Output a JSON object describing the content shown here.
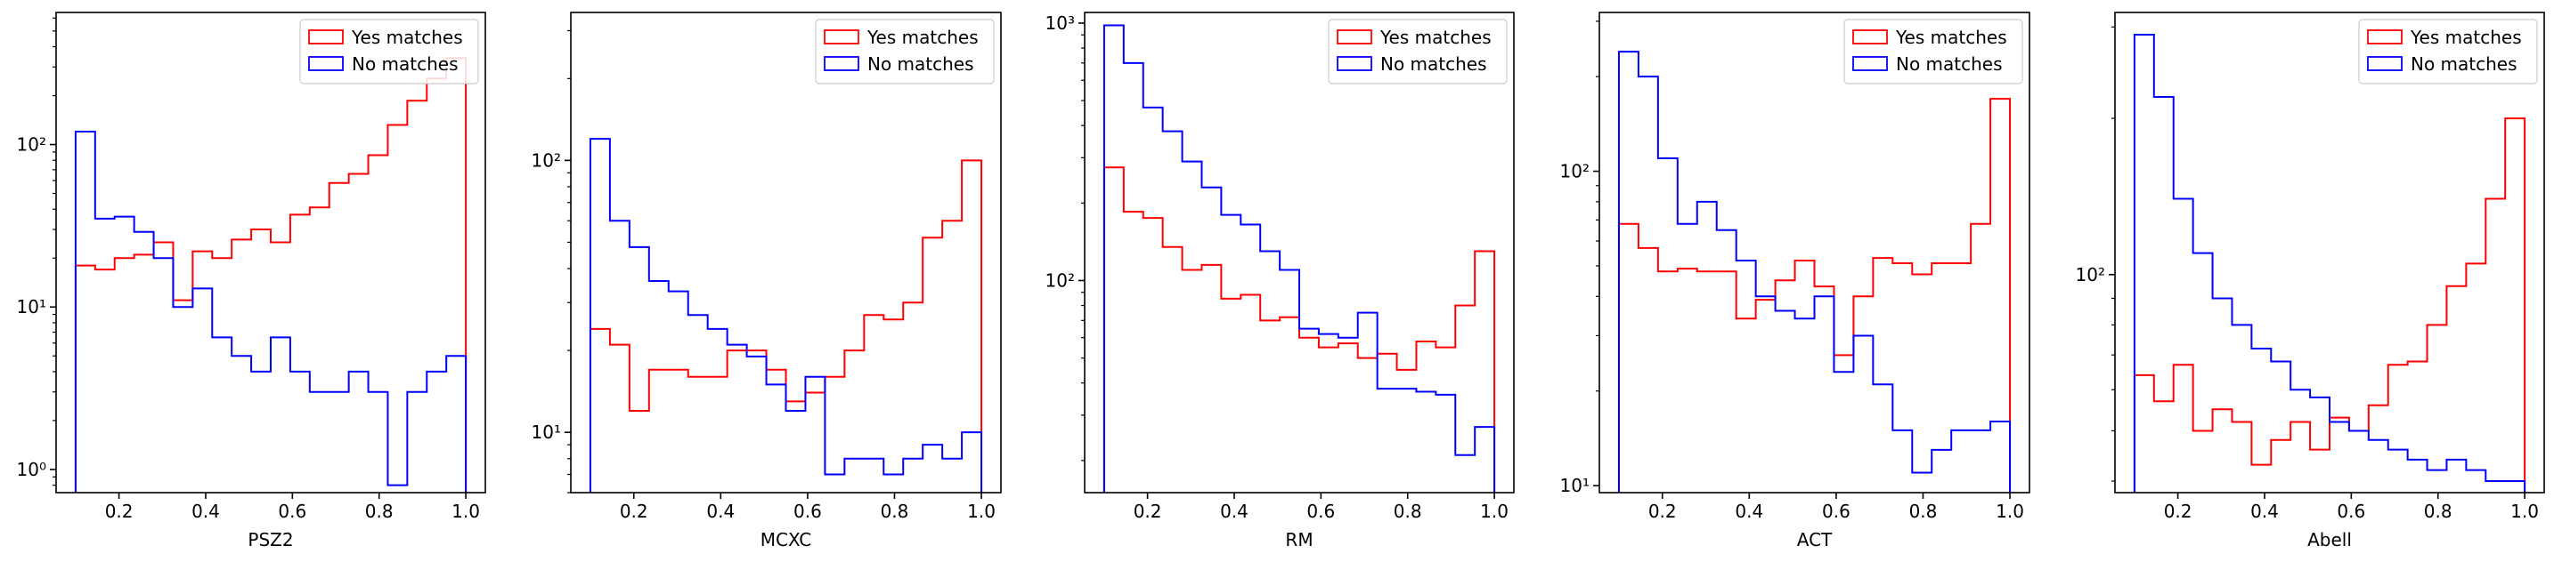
{
  "colors": {
    "yes": "#ff0000",
    "no": "#0000ff",
    "axis": "#000000",
    "legend_frame": "#cccccc"
  },
  "chart_data": [
    {
      "type": "histogram",
      "xlabel": "PSZ2",
      "ylabel": "",
      "xlim": [
        0.055,
        1.045
      ],
      "ylim": [
        0.72,
        650
      ],
      "yscale": "log",
      "legend_placement": "top-right",
      "xticks": [
        {
          "v": 0.2,
          "label": "0.2"
        },
        {
          "v": 0.4,
          "label": "0.4"
        },
        {
          "v": 0.6,
          "label": "0.6"
        },
        {
          "v": 0.8,
          "label": "0.8"
        },
        {
          "v": 1.0,
          "label": "1.0"
        }
      ],
      "yticks": [
        {
          "v": 1,
          "label": "10⁰"
        },
        {
          "v": 10,
          "label": "10¹"
        },
        {
          "v": 100,
          "label": "10²"
        }
      ],
      "bin_edges": [
        0.1,
        0.145,
        0.19,
        0.235,
        0.28,
        0.325,
        0.37,
        0.415,
        0.46,
        0.505,
        0.55,
        0.595,
        0.64,
        0.685,
        0.73,
        0.775,
        0.82,
        0.865,
        0.91,
        0.955,
        1.0
      ],
      "series": [
        {
          "name": "Yes matches",
          "color": "#ff0000",
          "counts": [
            18,
            17,
            20,
            21,
            25,
            11,
            22,
            20,
            26,
            30,
            25,
            37,
            41,
            58,
            66,
            86,
            132,
            186,
            255,
            340
          ]
        },
        {
          "name": "No matches",
          "color": "#0000ff",
          "counts": [
            120,
            35,
            36,
            29,
            20,
            10,
            13,
            6.5,
            5,
            4,
            6.5,
            4,
            3,
            3,
            4,
            3,
            0.8,
            3,
            4,
            5
          ]
        }
      ]
    },
    {
      "type": "histogram",
      "xlabel": "MCXC",
      "ylabel": "",
      "xlim": [
        0.055,
        1.045
      ],
      "ylim": [
        6,
        350
      ],
      "yscale": "log",
      "legend_placement": "top-right",
      "xticks": [
        {
          "v": 0.2,
          "label": "0.2"
        },
        {
          "v": 0.4,
          "label": "0.4"
        },
        {
          "v": 0.6,
          "label": "0.6"
        },
        {
          "v": 0.8,
          "label": "0.8"
        },
        {
          "v": 1.0,
          "label": "1.0"
        }
      ],
      "yticks": [
        {
          "v": 10,
          "label": "10¹"
        },
        {
          "v": 100,
          "label": "10²"
        }
      ],
      "bin_edges": [
        0.1,
        0.145,
        0.19,
        0.235,
        0.28,
        0.325,
        0.37,
        0.415,
        0.46,
        0.505,
        0.55,
        0.595,
        0.64,
        0.685,
        0.73,
        0.775,
        0.82,
        0.865,
        0.91,
        0.955,
        1.0
      ],
      "series": [
        {
          "name": "Yes matches",
          "color": "#ff0000",
          "counts": [
            24,
            21,
            12,
            17,
            17,
            16,
            16,
            20,
            20,
            17,
            13,
            14,
            16,
            20,
            27,
            26,
            30,
            52,
            60,
            100
          ]
        },
        {
          "name": "No matches",
          "color": "#0000ff",
          "counts": [
            120,
            60,
            48,
            36,
            33,
            27,
            24,
            21,
            19,
            15,
            12,
            16,
            7,
            8,
            8,
            7,
            8,
            9,
            8,
            10
          ]
        }
      ]
    },
    {
      "type": "histogram",
      "xlabel": "RM",
      "ylabel": "",
      "xlim": [
        0.055,
        1.045
      ],
      "ylim": [
        15,
        1100
      ],
      "yscale": "log",
      "legend_placement": "top-right",
      "xticks": [
        {
          "v": 0.2,
          "label": "0.2"
        },
        {
          "v": 0.4,
          "label": "0.4"
        },
        {
          "v": 0.6,
          "label": "0.6"
        },
        {
          "v": 0.8,
          "label": "0.8"
        },
        {
          "v": 1.0,
          "label": "1.0"
        }
      ],
      "yticks": [
        {
          "v": 100,
          "label": "10²"
        },
        {
          "v": 1000,
          "label": "10³"
        }
      ],
      "bin_edges": [
        0.1,
        0.145,
        0.19,
        0.235,
        0.28,
        0.325,
        0.37,
        0.415,
        0.46,
        0.505,
        0.55,
        0.595,
        0.64,
        0.685,
        0.73,
        0.775,
        0.82,
        0.865,
        0.91,
        0.955,
        1.0
      ],
      "series": [
        {
          "name": "Yes matches",
          "color": "#ff0000",
          "counts": [
            275,
            185,
            175,
            135,
            110,
            115,
            85,
            88,
            70,
            72,
            60,
            55,
            57,
            50,
            52,
            45,
            58,
            55,
            80,
            130
          ]
        },
        {
          "name": "No matches",
          "color": "#0000ff",
          "counts": [
            980,
            700,
            470,
            380,
            290,
            230,
            180,
            165,
            130,
            110,
            65,
            62,
            60,
            75,
            38,
            38,
            37,
            36,
            21,
            27
          ]
        }
      ]
    },
    {
      "type": "histogram",
      "xlabel": "ACT",
      "ylabel": "",
      "xlim": [
        0.055,
        1.045
      ],
      "ylim": [
        9.5,
        320
      ],
      "yscale": "log",
      "legend_placement": "top-right",
      "xticks": [
        {
          "v": 0.2,
          "label": "0.2"
        },
        {
          "v": 0.4,
          "label": "0.4"
        },
        {
          "v": 0.6,
          "label": "0.6"
        },
        {
          "v": 0.8,
          "label": "0.8"
        },
        {
          "v": 1.0,
          "label": "1.0"
        }
      ],
      "yticks": [
        {
          "v": 10,
          "label": "10¹"
        },
        {
          "v": 100,
          "label": "10²"
        }
      ],
      "bin_edges": [
        0.1,
        0.145,
        0.19,
        0.235,
        0.28,
        0.325,
        0.37,
        0.415,
        0.46,
        0.505,
        0.55,
        0.595,
        0.64,
        0.685,
        0.73,
        0.775,
        0.82,
        0.865,
        0.91,
        0.955,
        1.0
      ],
      "series": [
        {
          "name": "Yes matches",
          "color": "#ff0000",
          "counts": [
            68,
            57,
            48,
            49,
            48,
            48,
            34,
            39,
            45,
            52,
            43,
            26,
            40,
            53,
            51,
            47,
            51,
            51,
            68,
            170
          ]
        },
        {
          "name": "No matches",
          "color": "#0000ff",
          "counts": [
            240,
            200,
            110,
            68,
            80,
            65,
            52,
            40,
            36,
            34,
            40,
            23,
            30,
            21,
            15,
            11,
            13,
            15,
            15,
            16
          ]
        }
      ]
    },
    {
      "type": "histogram",
      "xlabel": "Abell",
      "ylabel": "",
      "xlim": [
        0.055,
        1.045
      ],
      "ylim": [
        38,
        320
      ],
      "yscale": "log",
      "legend_placement": "top-right",
      "xticks": [
        {
          "v": 0.2,
          "label": "0.2"
        },
        {
          "v": 0.4,
          "label": "0.4"
        },
        {
          "v": 0.6,
          "label": "0.6"
        },
        {
          "v": 0.8,
          "label": "0.8"
        },
        {
          "v": 1.0,
          "label": "1.0"
        }
      ],
      "yticks": [
        {
          "v": 100,
          "label": "10²"
        }
      ],
      "bin_edges": [
        0.1,
        0.145,
        0.19,
        0.235,
        0.28,
        0.325,
        0.37,
        0.415,
        0.46,
        0.505,
        0.55,
        0.595,
        0.64,
        0.685,
        0.73,
        0.775,
        0.82,
        0.865,
        0.91,
        0.955,
        1.0
      ],
      "series": [
        {
          "name": "Yes matches",
          "color": "#ff0000",
          "counts": [
            64,
            57,
            67,
            50,
            55,
            52,
            43,
            48,
            52,
            46,
            53,
            50,
            56,
            67,
            68,
            80,
            95,
            105,
            140,
            200
          ]
        },
        {
          "name": "No matches",
          "color": "#0000ff",
          "counts": [
            290,
            220,
            140,
            110,
            90,
            80,
            72,
            68,
            60,
            58,
            52,
            50,
            48,
            46,
            44,
            42,
            44,
            42,
            40,
            40
          ]
        }
      ]
    }
  ],
  "legend": {
    "labels": [
      "Yes matches",
      "No matches"
    ]
  }
}
